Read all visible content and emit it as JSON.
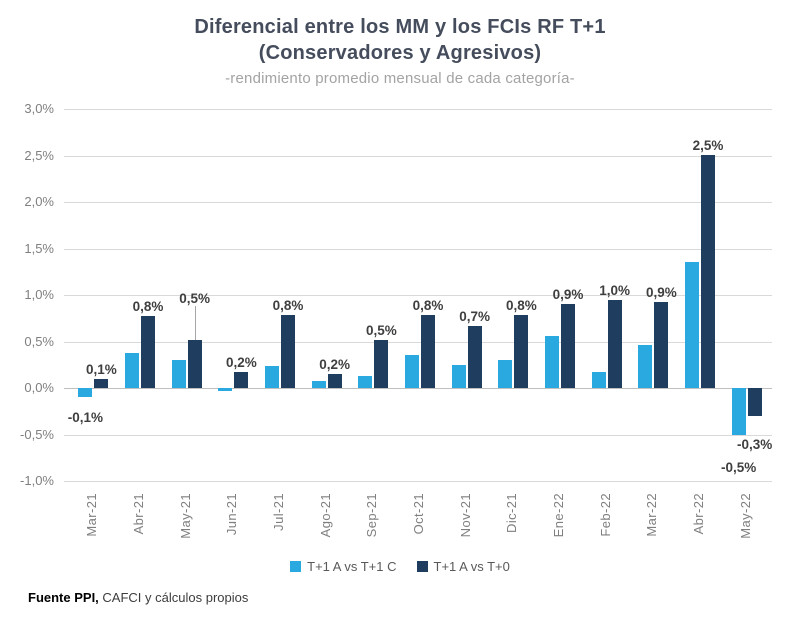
{
  "chart_data": {
    "type": "bar",
    "title_line1": "Diferencial entre los MM y los FCIs RF T+1",
    "title_line2": "(Conservadores y Agresivos)",
    "subtitle": "-rendimiento promedio mensual de cada categoría-",
    "categories": [
      "Mar-21",
      "Abr-21",
      "May-21",
      "Jun-21",
      "Jul-21",
      "Ago-21",
      "Sep-21",
      "Oct-21",
      "Nov-21",
      "Dic-21",
      "Ene-22",
      "Feb-22",
      "Mar-22",
      "Abr-22",
      "May-22"
    ],
    "series": [
      {
        "name": "T+1 A vs T+1 C",
        "color": "#2aa8e0",
        "values": [
          -0.1,
          0.38,
          0.3,
          -0.03,
          0.24,
          0.08,
          0.13,
          0.35,
          0.25,
          0.3,
          0.56,
          0.17,
          0.46,
          1.35,
          -0.5
        ],
        "labels": [
          "-0,1%",
          null,
          null,
          null,
          null,
          null,
          null,
          null,
          null,
          null,
          null,
          null,
          null,
          null,
          "-0,5%"
        ]
      },
      {
        "name": "T+1 A vs T+0",
        "color": "#1f3d5f",
        "values": [
          0.1,
          0.77,
          0.52,
          0.17,
          0.78,
          0.15,
          0.52,
          0.78,
          0.67,
          0.78,
          0.9,
          0.95,
          0.93,
          2.51,
          -0.3
        ],
        "labels": [
          "0,1%",
          "0,8%",
          "0,5%",
          "0,2%",
          "0,8%",
          "0,2%",
          "0,5%",
          "0,8%",
          "0,7%",
          "0,8%",
          "0,9%",
          "1,0%",
          "0,9%",
          "2,5%",
          "-0,3%"
        ]
      }
    ],
    "y_ticks": [
      "3,0%",
      "2,5%",
      "2,0%",
      "1,5%",
      "1,0%",
      "0,5%",
      "0,0%",
      "-0,5%",
      "-1,0%"
    ],
    "ylim": [
      -1.0,
      3.0
    ],
    "grid": "horizontal",
    "legend_position": "bottom",
    "label_adjust": [
      {
        "series": 0,
        "index": 0,
        "dy": 10
      },
      {
        "series": 1,
        "index": 2,
        "dy": -32,
        "leader": true
      },
      {
        "series": 1,
        "index": 14,
        "dy": 18
      },
      {
        "series": 0,
        "index": 14,
        "dy": 22
      }
    ]
  },
  "footer": {
    "source_bold": "Fuente PPI,",
    "source_rest": " CAFCI y cálculos propios"
  }
}
